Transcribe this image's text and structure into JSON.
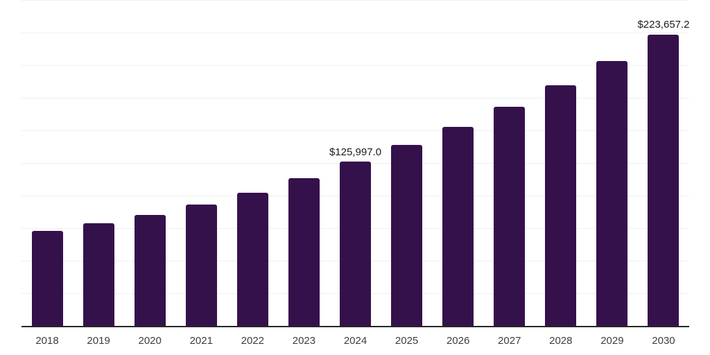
{
  "chart": {
    "background_color": "#ffffff",
    "bar_color": "#35114B",
    "axis_line_color": "#262626",
    "gridline_color": "#f0f0f0",
    "tick_label_color": "#3d3d3d",
    "data_label_color": "#1a1a1a"
  },
  "chart_data": {
    "type": "bar",
    "title": "",
    "xlabel": "",
    "ylabel": "",
    "categories": [
      "2018",
      "2019",
      "2020",
      "2021",
      "2022",
      "2023",
      "2024",
      "2025",
      "2026",
      "2027",
      "2028",
      "2029",
      "2030"
    ],
    "values": [
      73000,
      79000,
      85300,
      93300,
      102300,
      113500,
      125997.0,
      138600,
      152600,
      167900,
      184700,
      203300,
      223657.2
    ],
    "data_labels": [
      "",
      "",
      "",
      "",
      "",
      "",
      "$125,997.0",
      "",
      "",
      "",
      "",
      "",
      "$223,657.2"
    ],
    "ylim": [
      0,
      250000
    ],
    "grid_step": 25000,
    "grid": "horizontal",
    "legend": "none",
    "y_axis_labels_visible": false
  }
}
